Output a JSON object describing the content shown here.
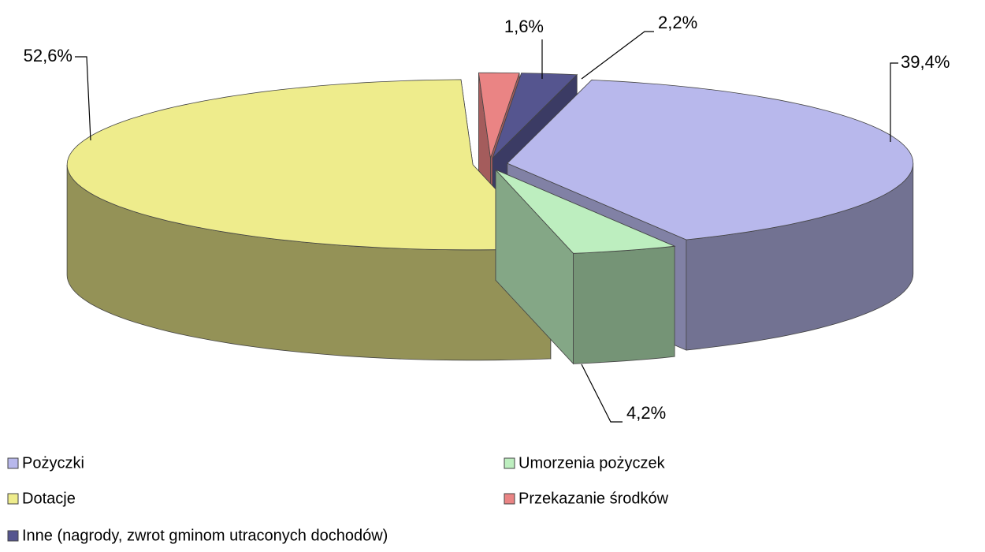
{
  "chart_data": {
    "type": "pie",
    "categories": [
      "Pożyczki",
      "Umorzenia pożyczek",
      "Dotacje",
      "Przekazanie środków",
      "Inne (nagrody, zwrot gminom utraconych dochodów)"
    ],
    "values": [
      39.4,
      4.2,
      52.6,
      1.6,
      2.2
    ],
    "value_labels": [
      "39,4%",
      "4,2%",
      "52,6%",
      "1,6%",
      "2,2%"
    ],
    "colors": [
      "#b8b8ec",
      "#bdeebf",
      "#eeec8c",
      "#ea8484",
      "#55558f"
    ]
  }
}
